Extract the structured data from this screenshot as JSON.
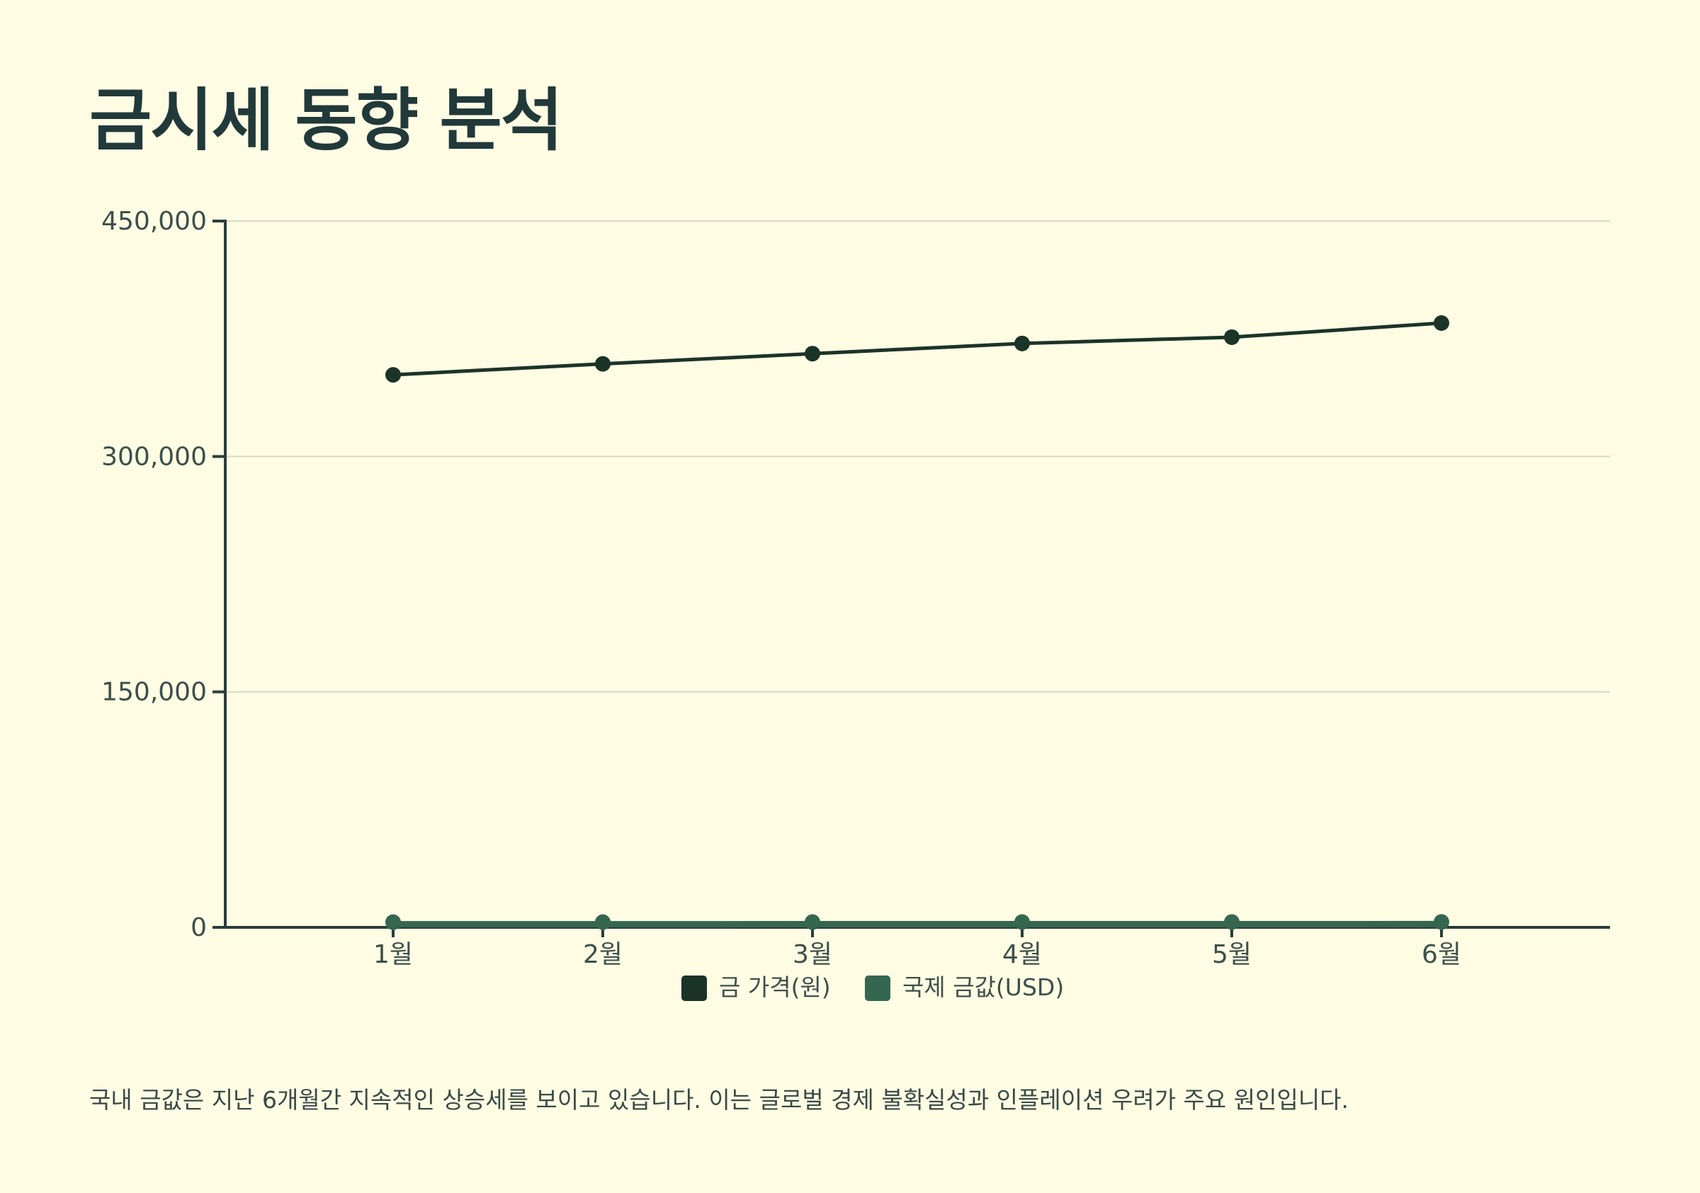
{
  "chart_data": {
    "type": "line",
    "title": "금시세 동향 분석",
    "categories": [
      "1월",
      "2월",
      "3월",
      "4월",
      "5월",
      "6월"
    ],
    "series": [
      {
        "name": "금 가격(원)",
        "values": [
          352000,
          359000,
          365500,
          372000,
          376000,
          385000
        ],
        "color": "#1c3328"
      },
      {
        "name": "국제 금값(USD)",
        "values": [
          1950,
          1980,
          2010,
          2030,
          2045,
          2070
        ],
        "color": "#356650"
      }
    ],
    "y_ticks": [
      0,
      150000,
      300000,
      450000
    ],
    "y_tick_labels": [
      "0",
      "150,000",
      "300,000",
      "450,000"
    ],
    "ylim": [
      0,
      450000
    ],
    "xlabel": "",
    "ylabel": "",
    "grid": true,
    "legend_position": "bottom-center"
  },
  "description": "국내 금값은 지난 6개월간 지속적인 상승세를 보이고 있습니다. 이는 글로벌 경제 불확실성과 인플레이션 우려가 주요 원인입니다."
}
